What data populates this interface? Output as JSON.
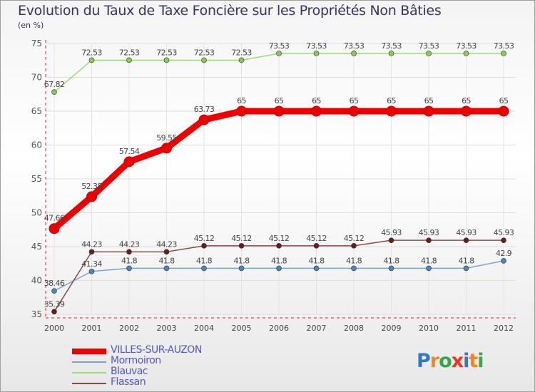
{
  "header": {
    "title": "Evolution du Taux de Taxe Foncière sur les Propriétés Non Bâties",
    "unit": "(en %)"
  },
  "logo": {
    "text": "Proxiti"
  },
  "chart_data": {
    "type": "line",
    "title": "Evolution du Taux de Taxe Foncière sur les Propriétés Non Bâties",
    "ylabel": "(en %)",
    "xlabel": "",
    "ylim": [
      35,
      75
    ],
    "yticks": [
      35,
      40,
      45,
      50,
      55,
      60,
      65,
      70,
      75
    ],
    "categories": [
      "2000",
      "2001",
      "2002",
      "2003",
      "2004",
      "2005",
      "2006",
      "2007",
      "2008",
      "2009",
      "2010",
      "2011",
      "2012"
    ],
    "legend_position": "bottom-left",
    "series": [
      {
        "name": "VILLES-SUR-AUZON",
        "color": "#ee0000",
        "marker": "#ee0000",
        "bold": true,
        "values": [
          47.66,
          52.38,
          57.54,
          59.55,
          63.73,
          65,
          65,
          65,
          65,
          65,
          65,
          65,
          65
        ],
        "labels": [
          "47.66",
          "52.38",
          "57.54",
          "59.55",
          "63.73",
          "65",
          "65",
          "65",
          "65",
          "65",
          "65",
          "65",
          "65"
        ]
      },
      {
        "name": "Mormoiron",
        "color": "#7aa3cc",
        "marker": "#4a86c0",
        "bold": false,
        "values": [
          38.46,
          41.34,
          41.8,
          41.8,
          41.8,
          41.8,
          41.8,
          41.8,
          41.8,
          41.8,
          41.8,
          41.8,
          42.9
        ],
        "labels": [
          "38.46",
          "41.34",
          "41.8",
          "41.8",
          "41.8",
          "41.8",
          "41.8",
          "41.8",
          "41.8",
          "41.8",
          "41.8",
          "41.8",
          "42.9"
        ]
      },
      {
        "name": "Blauvac",
        "color": "#99dd77",
        "marker": "#88cc55",
        "bold": false,
        "values": [
          67.82,
          72.53,
          72.53,
          72.53,
          72.53,
          72.53,
          73.53,
          73.53,
          73.53,
          73.53,
          73.53,
          73.53,
          73.53
        ],
        "labels": [
          "67.82",
          "72.53",
          "72.53",
          "72.53",
          "72.53",
          "72.53",
          "73.53",
          "73.53",
          "73.53",
          "73.53",
          "73.53",
          "73.53",
          "73.53"
        ]
      },
      {
        "name": "Flassan",
        "color": "#8b4a4a",
        "marker": "#6b1c1c",
        "bold": false,
        "values": [
          35.39,
          44.23,
          44.23,
          44.23,
          45.12,
          45.12,
          45.12,
          45.12,
          45.12,
          45.93,
          45.93,
          45.93,
          45.93
        ],
        "labels": [
          "35.39",
          "44.23",
          "44.23",
          "44.23",
          "45.12",
          "45.12",
          "45.12",
          "45.12",
          "45.12",
          "45.93",
          "45.93",
          "45.93",
          "45.93"
        ]
      }
    ]
  }
}
